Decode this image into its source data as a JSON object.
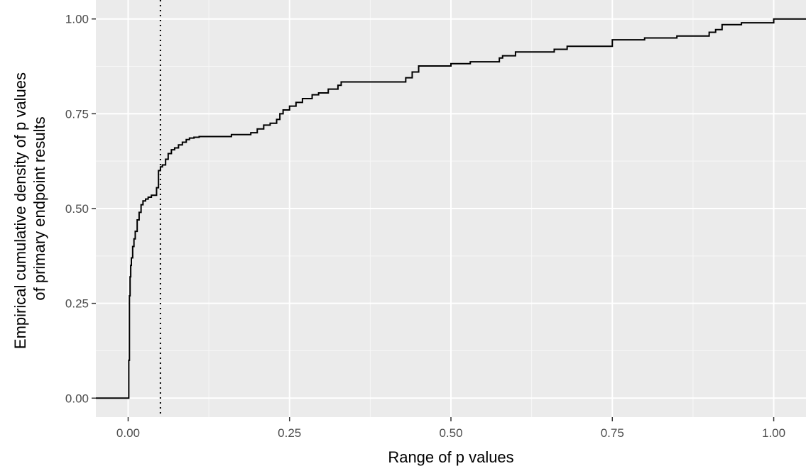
{
  "chart_data": {
    "type": "line",
    "subtype": "ecdf-step",
    "title": "",
    "xlabel": "Range of p values",
    "ylabel_lines": [
      "Empirical cumulative density of p values",
      "of primary endpoint results"
    ],
    "xlim": [
      -0.05,
      1.05
    ],
    "ylim": [
      -0.05,
      1.05
    ],
    "x_ticks": [
      0.0,
      0.25,
      0.5,
      0.75,
      1.0
    ],
    "x_tick_labels": [
      "0.00",
      "0.25",
      "0.50",
      "0.75",
      "1.00"
    ],
    "y_ticks": [
      0.0,
      0.25,
      0.5,
      0.75,
      1.0
    ],
    "y_tick_labels": [
      "0.00",
      "0.25",
      "0.50",
      "0.75",
      "1.00"
    ],
    "grid": true,
    "legend": "none",
    "reference_line": {
      "x": 0.05,
      "style": "dotted"
    },
    "series": [
      {
        "x": [
          -0.05,
          0.0,
          0.001,
          0.002,
          0.003,
          0.004,
          0.005,
          0.007,
          0.009,
          0.011,
          0.014,
          0.017,
          0.02,
          0.023,
          0.027,
          0.031,
          0.036,
          0.044,
          0.047,
          0.05,
          0.053,
          0.058,
          0.062,
          0.067,
          0.072,
          0.078,
          0.084,
          0.09,
          0.095,
          0.102,
          0.11,
          0.13,
          0.16,
          0.175,
          0.19,
          0.2,
          0.21,
          0.22,
          0.23,
          0.235,
          0.24,
          0.25,
          0.26,
          0.27,
          0.285,
          0.295,
          0.31,
          0.325,
          0.33,
          0.42,
          0.43,
          0.44,
          0.45,
          0.5,
          0.53,
          0.575,
          0.58,
          0.6,
          0.62,
          0.66,
          0.68,
          0.75,
          0.8,
          0.85,
          0.9,
          0.91,
          0.92,
          0.95,
          1.0,
          1.05
        ],
        "y": [
          0.0,
          0.0,
          0.1,
          0.27,
          0.32,
          0.35,
          0.37,
          0.4,
          0.42,
          0.44,
          0.47,
          0.49,
          0.51,
          0.52,
          0.525,
          0.53,
          0.535,
          0.555,
          0.6,
          0.61,
          0.615,
          0.63,
          0.645,
          0.655,
          0.66,
          0.668,
          0.675,
          0.682,
          0.686,
          0.688,
          0.69,
          0.69,
          0.695,
          0.695,
          0.7,
          0.71,
          0.72,
          0.725,
          0.735,
          0.75,
          0.76,
          0.77,
          0.78,
          0.79,
          0.8,
          0.805,
          0.815,
          0.825,
          0.834,
          0.834,
          0.845,
          0.86,
          0.876,
          0.882,
          0.887,
          0.897,
          0.903,
          0.913,
          0.913,
          0.92,
          0.928,
          0.945,
          0.95,
          0.955,
          0.965,
          0.972,
          0.985,
          0.99,
          1.0,
          1.0
        ]
      }
    ]
  }
}
